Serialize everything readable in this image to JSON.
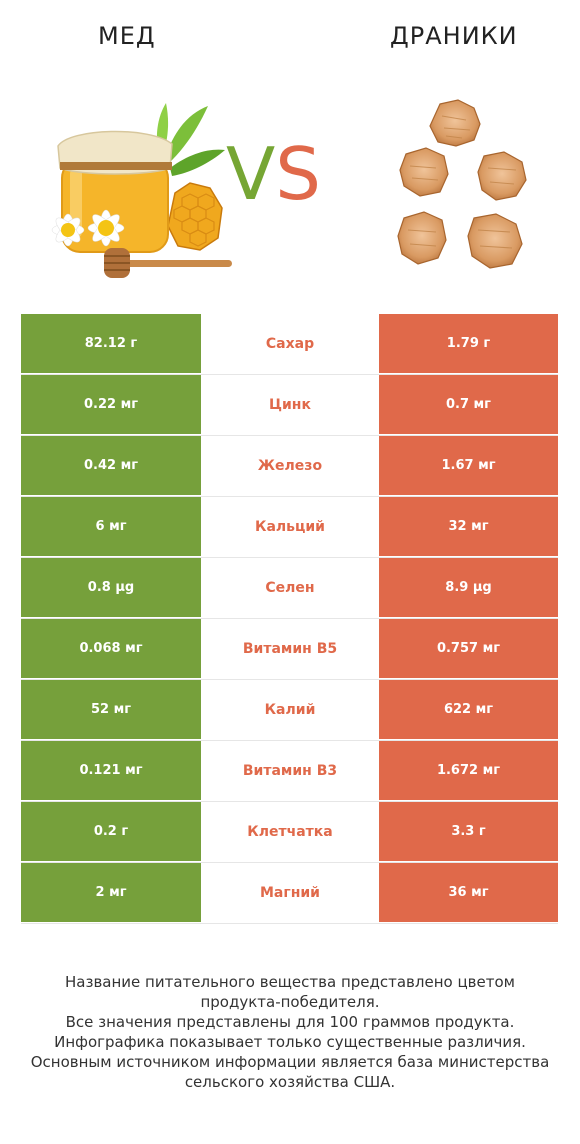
{
  "header": {
    "left_title": "МЕД",
    "right_title": "ДРАНИКИ",
    "vs_v": "V",
    "vs_s": "S"
  },
  "colors": {
    "winner_left": "#76a03b",
    "winner_right": "#e0694a"
  },
  "images": {
    "left": "honey-jar-image",
    "right": "potato-pancakes-image"
  },
  "rows": [
    {
      "left": "82.12 г",
      "nutrient": "Сахар",
      "right": "1.79 г",
      "winner": "right"
    },
    {
      "left": "0.22 мг",
      "nutrient": "Цинк",
      "right": "0.7 мг",
      "winner": "right"
    },
    {
      "left": "0.42 мг",
      "nutrient": "Железо",
      "right": "1.67 мг",
      "winner": "right"
    },
    {
      "left": "6 мг",
      "nutrient": "Кальций",
      "right": "32 мг",
      "winner": "right"
    },
    {
      "left": "0.8 µg",
      "nutrient": "Селен",
      "right": "8.9 µg",
      "winner": "right"
    },
    {
      "left": "0.068 мг",
      "nutrient": "Витамин B5",
      "right": "0.757 мг",
      "winner": "right"
    },
    {
      "left": "52 мг",
      "nutrient": "Калий",
      "right": "622 мг",
      "winner": "right"
    },
    {
      "left": "0.121 мг",
      "nutrient": "Витамин B3",
      "right": "1.672 мг",
      "winner": "right"
    },
    {
      "left": "0.2 г",
      "nutrient": "Клетчатка",
      "right": "3.3 г",
      "winner": "right"
    },
    {
      "left": "2 мг",
      "nutrient": "Магний",
      "right": "36 мг",
      "winner": "right"
    }
  ],
  "footnote": [
    "Название питательного вещества представлено цветом",
    "продукта-победителя.",
    "Все значения представлены для 100 граммов продукта.",
    "Инфографика показывает только существенные различия.",
    "Основным источником информации является база министерства",
    "сельского хозяйства США."
  ]
}
